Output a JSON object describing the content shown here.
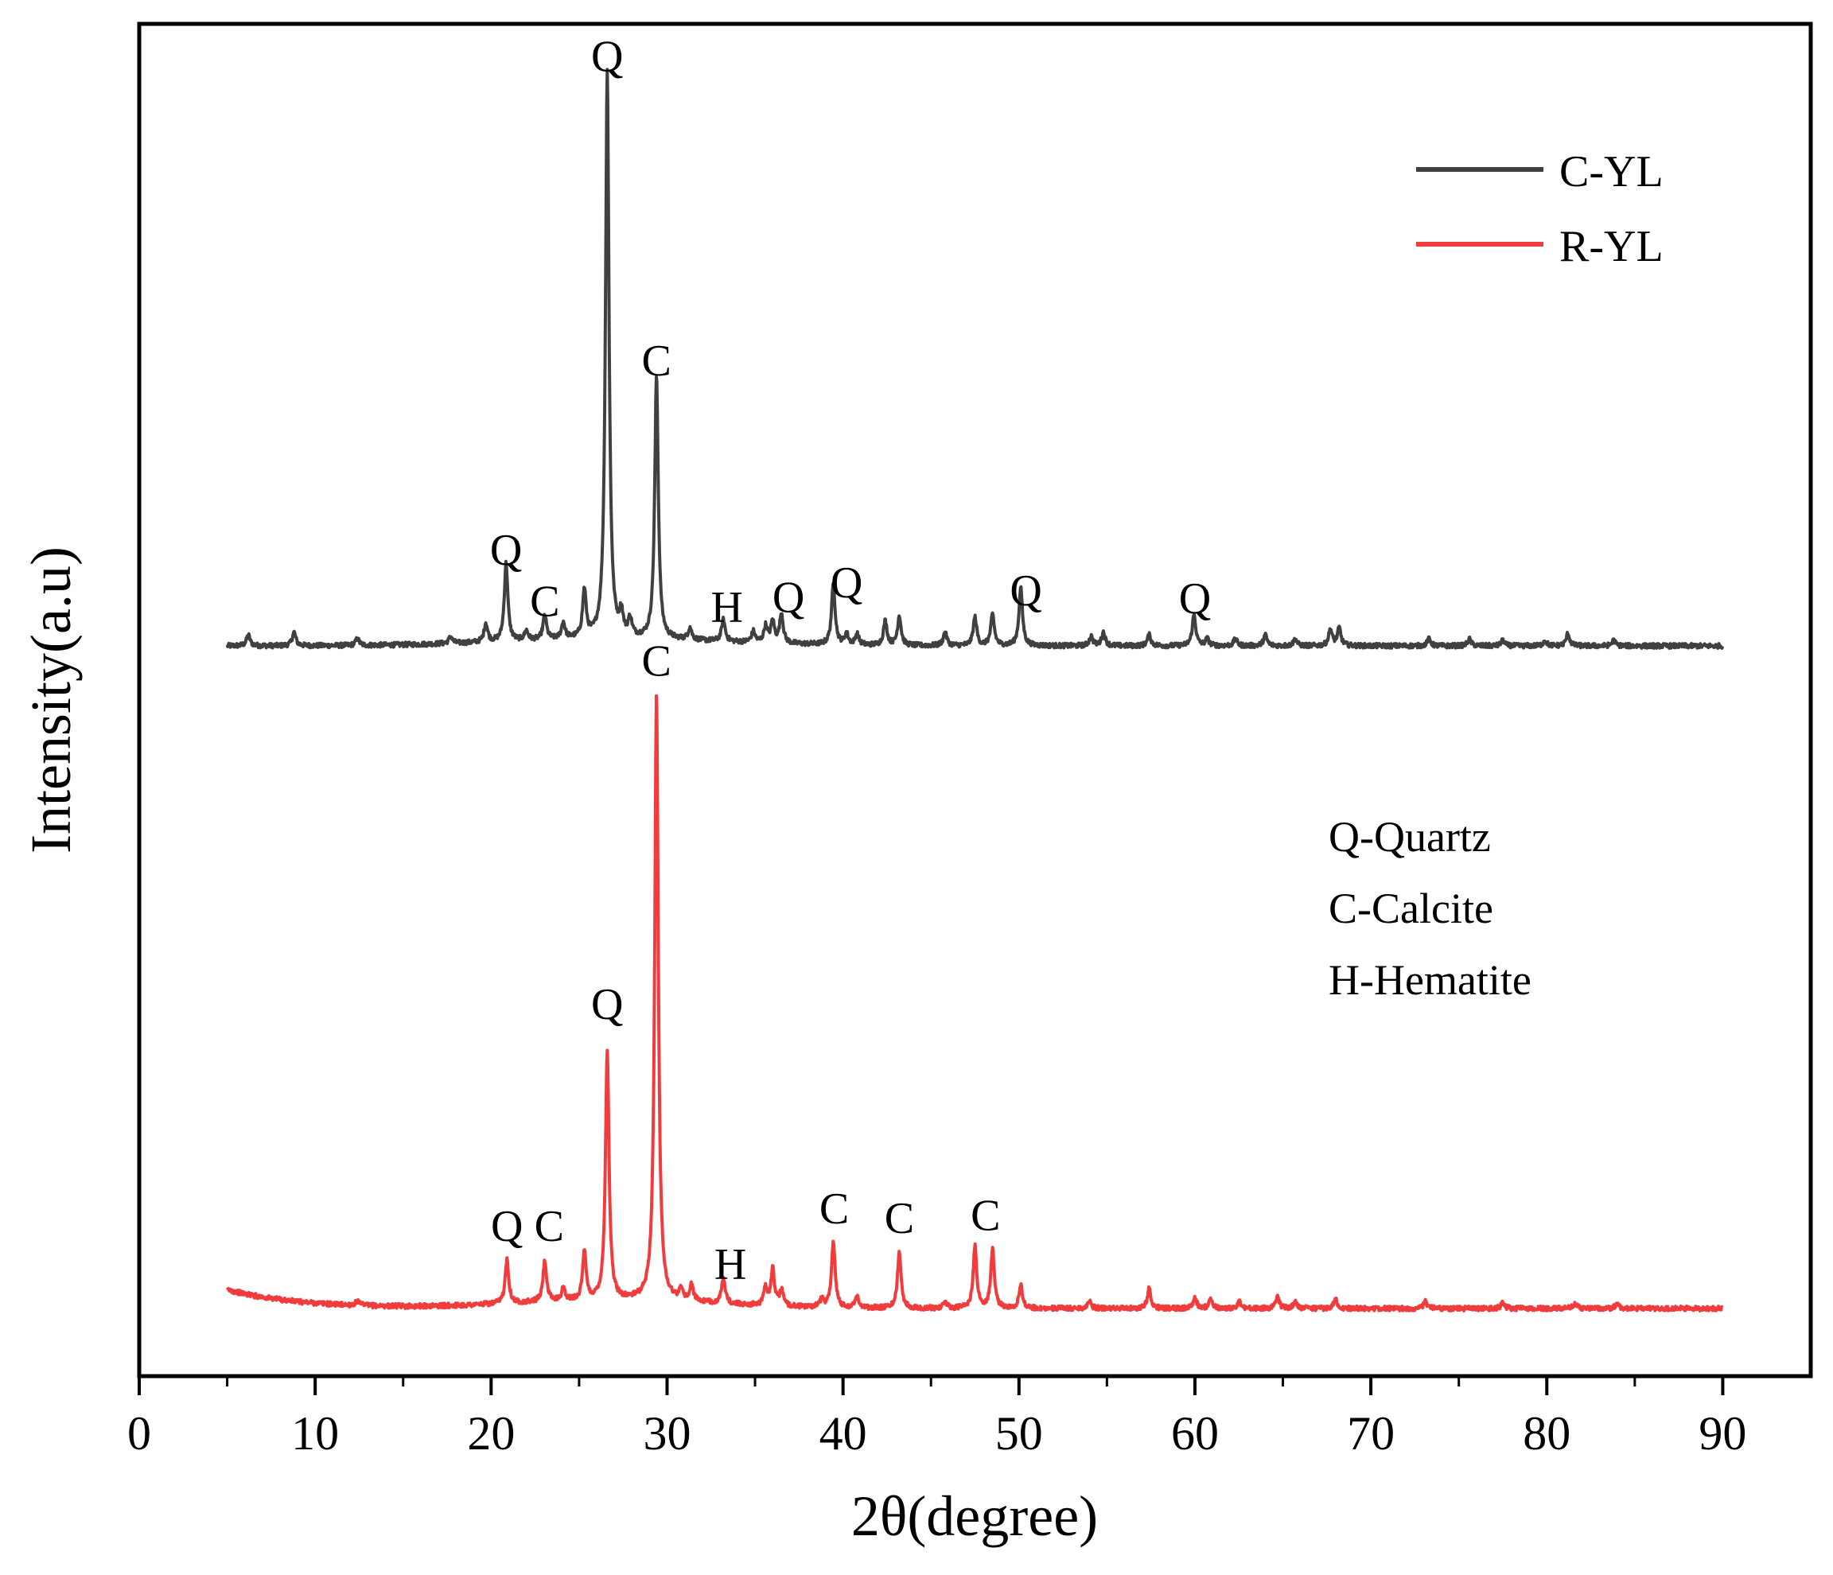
{
  "chart_data": {
    "type": "line",
    "title": "",
    "xlabel": "2θ(degree)",
    "ylabel": "Intensity(a.u)",
    "xlim": [
      0,
      95
    ],
    "xticks": [
      0,
      10,
      20,
      30,
      40,
      50,
      60,
      70,
      80,
      90
    ],
    "ylim": [
      0,
      100
    ],
    "yticks_shown": false,
    "grid": false,
    "legend": {
      "position": "top-right",
      "entries": [
        {
          "name": "C-YL",
          "color": "#404040"
        },
        {
          "name": "R-YL",
          "color": "#f03c3c"
        }
      ]
    },
    "phase_key": [
      "Q-Quartz",
      "C-Calcite",
      "H-Hematite"
    ],
    "series": [
      {
        "name": "C-YL",
        "color": "#404040",
        "baseline": 54,
        "range": [
          5,
          90
        ],
        "peaks": [
          [
            6.2,
            0.8
          ],
          [
            8.8,
            1.0
          ],
          [
            12.4,
            0.5
          ],
          [
            17.7,
            0.5
          ],
          [
            19.7,
            1.4
          ],
          [
            20.85,
            5.8
          ],
          [
            22.0,
            0.7
          ],
          [
            23.05,
            1.8
          ],
          [
            24.1,
            1.2
          ],
          [
            25.3,
            3.5
          ],
          [
            26.6,
            42.0
          ],
          [
            27.4,
            1.6
          ],
          [
            27.9,
            1.3
          ],
          [
            29.4,
            19.5
          ],
          [
            31.3,
            0.9
          ],
          [
            33.2,
            1.6
          ],
          [
            34.9,
            0.8
          ],
          [
            35.6,
            1.2
          ],
          [
            36.0,
            1.6
          ],
          [
            36.5,
            2.2
          ],
          [
            39.45,
            4.5
          ],
          [
            40.2,
            0.8
          ],
          [
            40.8,
            0.8
          ],
          [
            42.4,
            1.8
          ],
          [
            43.2,
            2.2
          ],
          [
            45.8,
            1.0
          ],
          [
            47.5,
            2.1
          ],
          [
            48.5,
            2.3
          ],
          [
            50.1,
            4.3
          ],
          [
            54.1,
            0.7
          ],
          [
            54.8,
            1.0
          ],
          [
            57.4,
            0.8
          ],
          [
            59.95,
            2.3
          ],
          [
            60.7,
            0.5
          ],
          [
            62.3,
            0.5
          ],
          [
            64.0,
            0.8
          ],
          [
            65.7,
            0.5
          ],
          [
            67.7,
            1.2
          ],
          [
            68.2,
            1.3
          ],
          [
            73.3,
            0.5
          ],
          [
            75.6,
            0.5
          ],
          [
            77.5,
            0.4
          ],
          [
            79.9,
            0.4
          ],
          [
            81.2,
            0.9
          ],
          [
            83.8,
            0.4
          ]
        ],
        "annotations": [
          {
            "label": "Q",
            "x": 26.6,
            "y": 96.5
          },
          {
            "label": "C",
            "x": 29.4,
            "y": 74.0
          },
          {
            "label": "Q",
            "x": 20.85,
            "y": 60.0
          },
          {
            "label": "C",
            "x": 23.05,
            "y": 56.2
          },
          {
            "label": "H",
            "x": 33.4,
            "y": 55.8
          },
          {
            "label": "Q",
            "x": 36.9,
            "y": 56.5
          },
          {
            "label": "Q",
            "x": 40.2,
            "y": 57.6
          },
          {
            "label": "Q",
            "x": 50.4,
            "y": 57.0
          },
          {
            "label": "Q",
            "x": 60.0,
            "y": 56.4
          }
        ]
      },
      {
        "name": "R-YL",
        "color": "#f03c3c",
        "baseline": 5,
        "range": [
          5,
          90
        ],
        "peaks": [
          [
            12.4,
            0.3
          ],
          [
            20.9,
            3.3
          ],
          [
            23.05,
            3.0
          ],
          [
            24.1,
            0.9
          ],
          [
            25.3,
            3.5
          ],
          [
            26.6,
            18.5
          ],
          [
            29.4,
            45.0
          ],
          [
            30.8,
            0.8
          ],
          [
            31.4,
            1.2
          ],
          [
            33.2,
            1.8
          ],
          [
            35.6,
            1.3
          ],
          [
            36.0,
            2.7
          ],
          [
            36.5,
            1.2
          ],
          [
            38.8,
            0.6
          ],
          [
            39.45,
            5.0
          ],
          [
            40.8,
            0.9
          ],
          [
            43.2,
            4.2
          ],
          [
            45.8,
            0.5
          ],
          [
            47.5,
            4.6
          ],
          [
            48.5,
            4.4
          ],
          [
            50.1,
            1.7
          ],
          [
            54.0,
            0.6
          ],
          [
            57.4,
            1.5
          ],
          [
            60.0,
            0.8
          ],
          [
            60.9,
            0.7
          ],
          [
            62.5,
            0.5
          ],
          [
            64.7,
            0.8
          ],
          [
            65.7,
            0.5
          ],
          [
            68.0,
            0.7
          ],
          [
            73.1,
            0.5
          ],
          [
            77.5,
            0.4
          ],
          [
            81.6,
            0.4
          ],
          [
            84.0,
            0.4
          ]
        ],
        "annotations": [
          {
            "label": "C",
            "x": 29.4,
            "y": 51.8
          },
          {
            "label": "Q",
            "x": 26.6,
            "y": 26.4
          },
          {
            "label": "Q",
            "x": 20.9,
            "y": 10.0
          },
          {
            "label": "C",
            "x": 23.3,
            "y": 10.0
          },
          {
            "label": "H",
            "x": 33.6,
            "y": 7.2
          },
          {
            "label": "C",
            "x": 39.5,
            "y": 11.3
          },
          {
            "label": "C",
            "x": 43.2,
            "y": 10.6
          },
          {
            "label": "C",
            "x": 48.1,
            "y": 10.8
          }
        ]
      }
    ]
  }
}
